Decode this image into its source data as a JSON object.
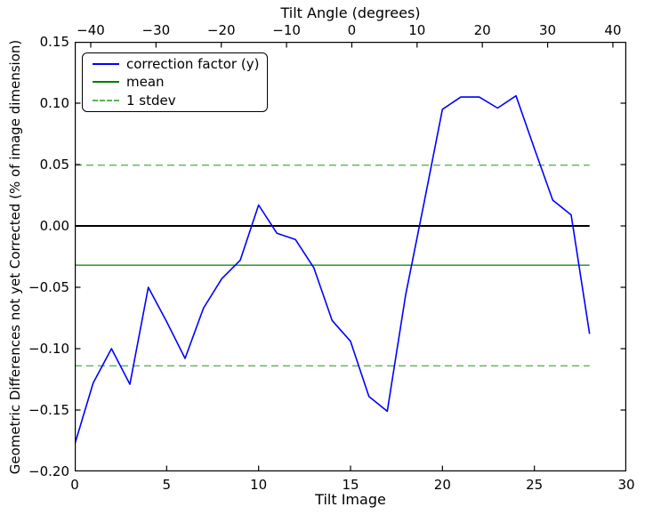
{
  "figure": {
    "background": "#ffffff",
    "top_axis_title": "Tilt Angle (degrees)",
    "xlabel": "Tilt Image",
    "ylabel": "Geometric Differences not yet Corrected (% of image dimension)"
  },
  "legend": {
    "position": "upper left",
    "items": [
      {
        "label": "correction factor (y)",
        "color": "#0000ff",
        "style": "solid"
      },
      {
        "label": "mean",
        "color": "#007f00",
        "style": "solid"
      },
      {
        "label": "1 stdev",
        "color": "#5ab45a",
        "style": "dashed"
      }
    ]
  },
  "chart_data": {
    "type": "line",
    "title": "Tilt Angle (degrees)",
    "xlabel": "Tilt Image",
    "ylabel": "Geometric Differences not yet Corrected (% of image dimension)",
    "xlim": [
      0,
      30
    ],
    "ylim": [
      -0.2,
      0.15
    ],
    "grid": false,
    "x": [
      0,
      1,
      2,
      3,
      4,
      5,
      6,
      7,
      8,
      9,
      10,
      11,
      12,
      13,
      14,
      15,
      16,
      17,
      18,
      19,
      20,
      21,
      22,
      23,
      24,
      25,
      26,
      27,
      28
    ],
    "series": [
      {
        "name": "correction factor (y)",
        "color": "#0000ff",
        "values": [
          -0.178,
          -0.128,
          -0.1,
          -0.129,
          -0.05,
          -0.078,
          -0.108,
          -0.067,
          -0.043,
          -0.028,
          0.017,
          -0.006,
          -0.011,
          -0.034,
          -0.077,
          -0.094,
          -0.139,
          -0.151,
          -0.056,
          0.019,
          0.095,
          0.105,
          0.105,
          0.096,
          0.106,
          0.063,
          0.021,
          0.009,
          -0.088
        ]
      }
    ],
    "reference_lines": [
      {
        "name": "zero",
        "value": 0.0,
        "color": "#000000",
        "dashed": false,
        "width": 2.0,
        "x_range": [
          0,
          28
        ]
      },
      {
        "name": "mean",
        "value": -0.032,
        "color": "#007f00",
        "dashed": false,
        "width": 1.3,
        "x_range": [
          0,
          28
        ]
      },
      {
        "name": "stdev_upper",
        "value": 0.0495,
        "color": "#5ab45a",
        "dashed": true,
        "width": 1.3,
        "x_range": [
          0,
          28
        ]
      },
      {
        "name": "stdev_lower",
        "value": -0.114,
        "color": "#5ab45a",
        "dashed": true,
        "width": 1.3,
        "x_range": [
          0,
          28
        ]
      }
    ],
    "stats": {
      "mean": -0.032,
      "stdev": 0.0815
    },
    "x_ticks": [
      0,
      5,
      10,
      15,
      20,
      25,
      30
    ],
    "x_tick_labels": [
      "0",
      "5",
      "10",
      "15",
      "20",
      "25",
      "30"
    ],
    "y_ticks": [
      0.15,
      0.1,
      0.05,
      0.0,
      -0.05,
      -0.1,
      -0.15,
      -0.2
    ],
    "y_tick_labels": [
      "0.15",
      "0.10",
      "0.05",
      "0.00",
      "−0.05",
      "−0.10",
      "−0.15",
      "−0.20"
    ],
    "top_axis": {
      "label": "Tilt Angle (degrees)",
      "ticks": [
        -40,
        -30,
        -20,
        -10,
        0,
        10,
        20,
        30,
        40
      ],
      "tick_labels": [
        "−40",
        "−30",
        "−20",
        "−10",
        "0",
        "10",
        "20",
        "30",
        "40"
      ],
      "image_at_minus40": 0.87,
      "image_at_plus40": 29.27
    },
    "legend": [
      "correction factor (y)",
      "mean",
      "1 stdev"
    ],
    "legend_position": "upper left"
  }
}
